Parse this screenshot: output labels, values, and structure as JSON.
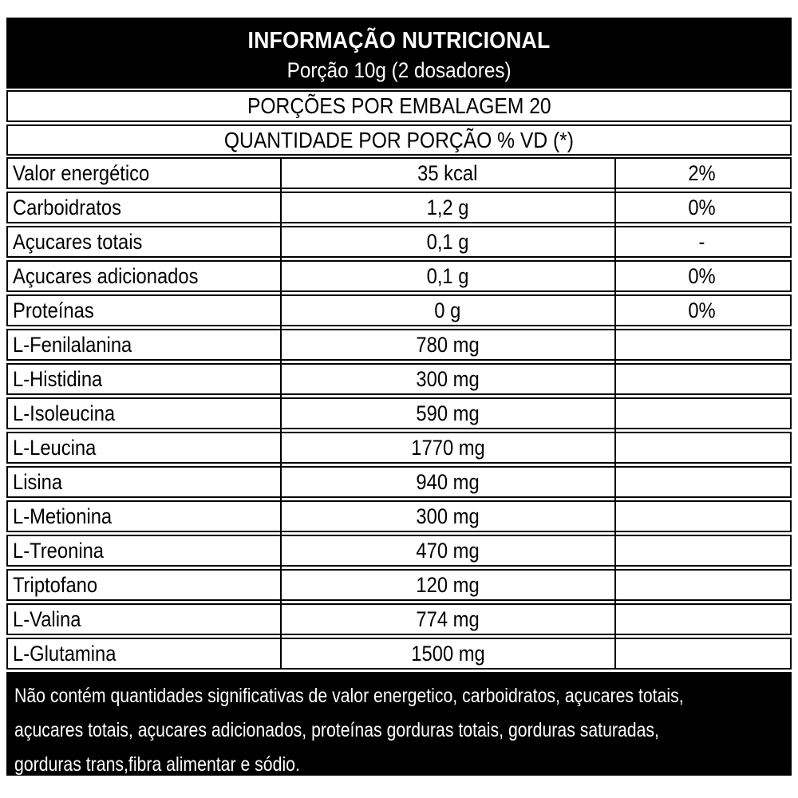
{
  "header": {
    "title": "INFORMAÇÃO NUTRICIONAL",
    "serving": "Porção 10g (2 dosadores)"
  },
  "bands": {
    "servings_per_package": "PORÇÕES POR EMBALAGEM 20",
    "quantity_header": "QUANTIDADE POR PORÇÃO % VD (*)"
  },
  "table": {
    "columns": [
      "nutrient",
      "amount_per_serving",
      "percent_daily_value"
    ],
    "rows": [
      {
        "name": "Valor energético",
        "amount": "35 kcal",
        "dv": "2%"
      },
      {
        "name": "Carboidratos",
        "amount": "1,2 g",
        "dv": "0%"
      },
      {
        "name": "Açucares totais",
        "amount": "0,1 g",
        "dv": "-"
      },
      {
        "name": "Açucares adicionados",
        "amount": "0,1 g",
        "dv": "0%"
      },
      {
        "name": "Proteínas",
        "amount": "0 g",
        "dv": "0%"
      },
      {
        "name": "L-Fenilalanina",
        "amount": "780 mg",
        "dv": ""
      },
      {
        "name": "L-Histidina",
        "amount": "300 mg",
        "dv": ""
      },
      {
        "name": "L-Isoleucina",
        "amount": "590 mg",
        "dv": ""
      },
      {
        "name": "L-Leucina",
        "amount": "1770 mg",
        "dv": ""
      },
      {
        "name": "Lisina",
        "amount": "940 mg",
        "dv": ""
      },
      {
        "name": "L-Metionina",
        "amount": "300 mg",
        "dv": ""
      },
      {
        "name": "L-Treonina",
        "amount": "470 mg",
        "dv": ""
      },
      {
        "name": "Triptofano",
        "amount": "120 mg",
        "dv": ""
      },
      {
        "name": "L-Valina",
        "amount": "774 mg",
        "dv": ""
      },
      {
        "name": "L-Glutamina",
        "amount": "1500 mg",
        "dv": ""
      }
    ]
  },
  "footer": {
    "lines": [
      "Não contém quantidades significativas de valor energetico, carboidratos, açucares totais,",
      "açucares totais, açucares adicionados, proteínas gorduras totais, gorduras saturadas,",
      "gorduras trans,fibra alimentar e sódio."
    ]
  },
  "colors": {
    "band_background": "#000000",
    "band_text": "#ffffff",
    "body_text": "#000000",
    "border": "#000000",
    "page_background": "#ffffff"
  }
}
